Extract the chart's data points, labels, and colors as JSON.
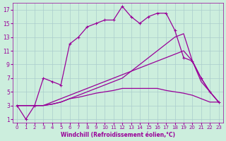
{
  "xlabel": "Windchill (Refroidissement éolien,°C)",
  "bg_color": "#cceedd",
  "grid_color": "#aacccc",
  "line_color": "#990099",
  "xlim": [
    -0.5,
    23.5
  ],
  "ylim": [
    0.5,
    18
  ],
  "xticks": [
    0,
    1,
    2,
    3,
    4,
    5,
    6,
    7,
    8,
    9,
    10,
    11,
    12,
    13,
    14,
    15,
    16,
    17,
    18,
    19,
    20,
    21,
    22,
    23
  ],
  "yticks": [
    1,
    3,
    5,
    7,
    9,
    11,
    13,
    15,
    17
  ],
  "series1_x": [
    0,
    1,
    2,
    3,
    4,
    5,
    6,
    7,
    8,
    9,
    10,
    11,
    12,
    13,
    14,
    15,
    16,
    17,
    18,
    19,
    20,
    21,
    22,
    23
  ],
  "series1_y": [
    3,
    1,
    3,
    7,
    6.5,
    6,
    12,
    13,
    14.5,
    15,
    15.5,
    15.5,
    17.5,
    16,
    15,
    16,
    16.5,
    16.5,
    14,
    10,
    9.5,
    7,
    5,
    3.5
  ],
  "series2_x": [
    0,
    2,
    3,
    4,
    5,
    6,
    7,
    8,
    9,
    10,
    11,
    12,
    13,
    14,
    15,
    16,
    17,
    18,
    19,
    20,
    21,
    22,
    23
  ],
  "series2_y": [
    3,
    3,
    3,
    3.2,
    3.5,
    4,
    4.5,
    5,
    5.5,
    6,
    6.5,
    7,
    8,
    9,
    10,
    11,
    12,
    13,
    13.5,
    9.5,
    6.5,
    5,
    3.5
  ],
  "series3_x": [
    0,
    2,
    3,
    4,
    5,
    6,
    7,
    8,
    9,
    10,
    11,
    12,
    13,
    14,
    15,
    16,
    17,
    18,
    19,
    20,
    21,
    22,
    23
  ],
  "series3_y": [
    3,
    3,
    3,
    3.5,
    4,
    4.5,
    5,
    5.5,
    6,
    6.5,
    7,
    7.5,
    8,
    8.5,
    9,
    9.5,
    10,
    10.5,
    11,
    9.5,
    7,
    5,
    3.5
  ],
  "series4_x": [
    0,
    2,
    3,
    4,
    5,
    6,
    7,
    8,
    9,
    10,
    11,
    12,
    13,
    14,
    15,
    16,
    17,
    18,
    19,
    20,
    21,
    22,
    23
  ],
  "series4_y": [
    3,
    3,
    3,
    3.2,
    3.5,
    4,
    4.2,
    4.5,
    4.8,
    5,
    5.2,
    5.5,
    5.5,
    5.5,
    5.5,
    5.5,
    5.2,
    5,
    4.8,
    4.5,
    4,
    3.5,
    3.5
  ]
}
